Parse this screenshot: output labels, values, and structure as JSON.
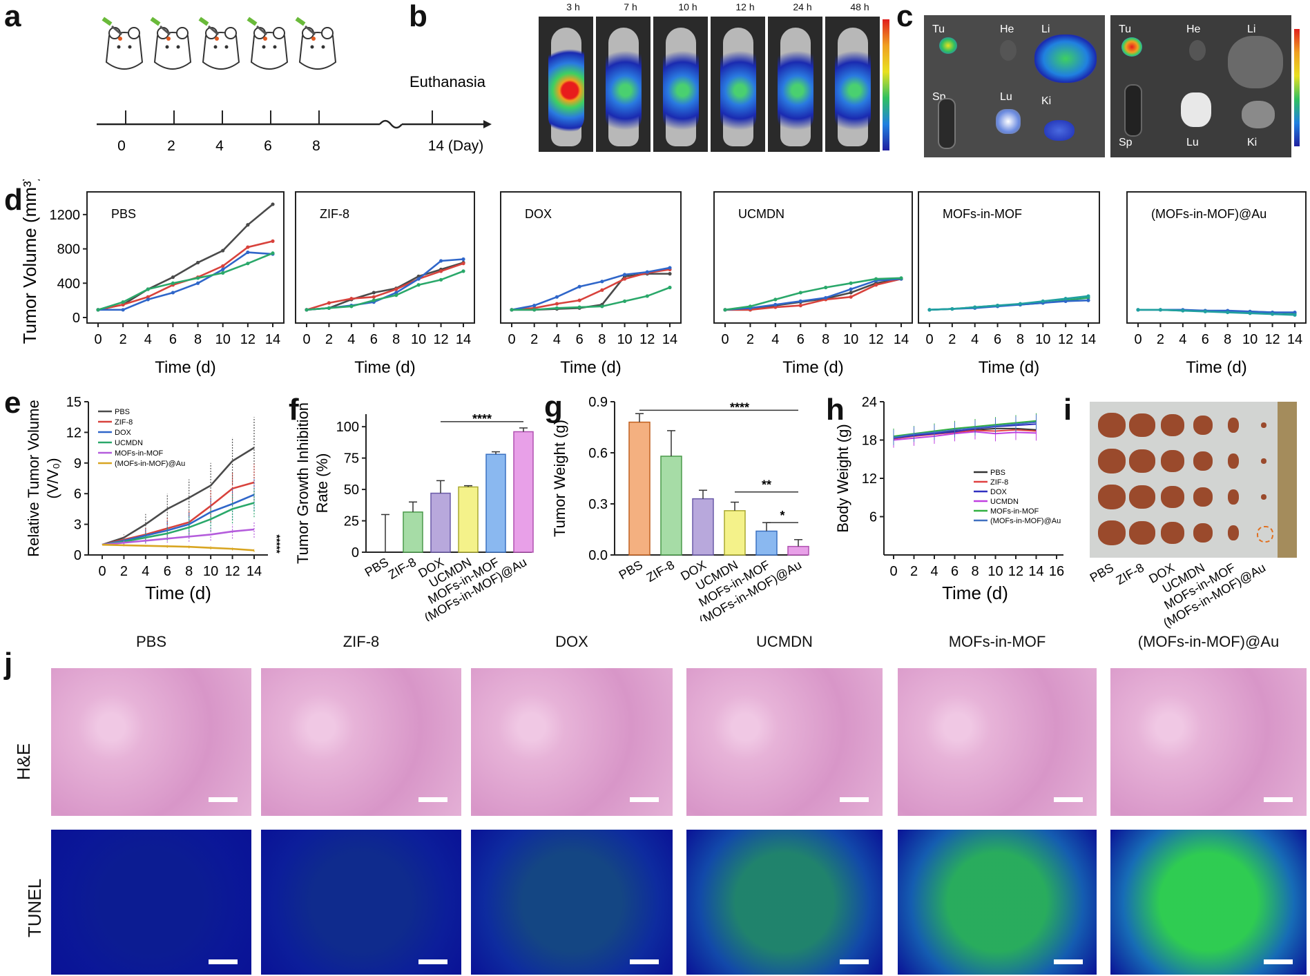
{
  "panels": {
    "a": "a",
    "b": "b",
    "c": "c",
    "d": "d",
    "e": "e",
    "f": "f",
    "g": "g",
    "h": "h",
    "i": "i",
    "j": "j"
  },
  "colors": {
    "PBS": "#4a4a4a",
    "ZIF-8": "#d8423c",
    "DOX": "#2f66c9",
    "UCMDN": "#2aa86a",
    "MOFs-in-MOF": "#b45cdc",
    "Au": "#d8a521",
    "he_bg": "#e7b3d8",
    "tunel_bg": "#0a1296",
    "tunel_green": "#33e04a"
  },
  "panel_a": {
    "days": [
      "0",
      "2",
      "4",
      "6",
      "8"
    ],
    "end_day": "14 (Day)",
    "event": "Euthanasia"
  },
  "panel_b": {
    "timepoints": [
      "3 h",
      "7 h",
      "10 h",
      "12 h",
      "24 h",
      "48 h"
    ]
  },
  "panel_c": {
    "left": [
      "Tu",
      "He",
      "Li",
      "Sp",
      "Lu",
      "Ki"
    ],
    "right": [
      "Tu",
      "He",
      "Li",
      "Sp",
      "Lu",
      "Ki"
    ]
  },
  "panel_d": {
    "ylabel": "Tumor Volume (mm³)",
    "xlabel": "Time (d)",
    "yticks": [
      "0",
      "400",
      "800",
      "1200"
    ],
    "xticks": [
      "0",
      "2",
      "4",
      "6",
      "8",
      "10",
      "12",
      "14"
    ]
  },
  "panel_e": {
    "ylabel_line1": "Relative Tumor Volume",
    "ylabel_line2": "(V/V₀)",
    "xlabel": "Time (d)",
    "yticks": [
      "0",
      "3",
      "6",
      "9",
      "12",
      "15"
    ],
    "xticks": [
      "0",
      "2",
      "4",
      "6",
      "8",
      "10",
      "12",
      "14"
    ],
    "legend": [
      "PBS",
      "ZIF-8",
      "DOX",
      "UCMDN",
      "MOFs-in-MOF",
      "(MOFs-in-MOF)@Au"
    ],
    "sig": "*****"
  },
  "panel_f": {
    "ylabel_line1": "Tumor Growth Inhibition",
    "ylabel_line2": "Rate (%)",
    "yticks": [
      "0",
      "25",
      "50",
      "75",
      "100"
    ],
    "categories": [
      "PBS",
      "ZIF-8",
      "DOX",
      "UCMDN",
      "MOFs-in-MOF",
      "(MOFs-in-MOF)@Au"
    ],
    "sig": "****"
  },
  "panel_g": {
    "ylabel": "Tumor Weight (g)",
    "yticks": [
      "0.0",
      "0.3",
      "0.6",
      "0.9"
    ],
    "categories": [
      "PBS",
      "ZIF-8",
      "DOX",
      "UCMDN",
      "MOFs-in-MOF",
      "(MOFs-in-MOF)@Au"
    ],
    "sig1": "****",
    "sig2": "**",
    "sig3": "*"
  },
  "panel_h": {
    "ylabel": "Body Weight (g)",
    "xlabel": "Time (d)",
    "yticks": [
      "6",
      "12",
      "18",
      "24"
    ],
    "xticks": [
      "0",
      "2",
      "4",
      "6",
      "8",
      "10",
      "12",
      "14",
      "16"
    ],
    "legend": [
      "PBS",
      "ZIF-8",
      "DOX",
      "UCMDN",
      "MOFs-in-MOF",
      "(MOFs-in-MOF)@Au"
    ]
  },
  "panel_i": {
    "categories": [
      "PBS",
      "ZIF-8",
      "DOX",
      "UCMDN",
      "MOFs-in-MOF",
      "(MOFs-in-MOF)@Au"
    ]
  },
  "panel_j": {
    "columns": [
      "PBS",
      "ZIF-8",
      "DOX",
      "UCMDN",
      "MOFs-in-MOF",
      "(MOFs-in-MOF)@Au"
    ],
    "rows": [
      "H&E",
      "TUNEL"
    ]
  },
  "chart_data": [
    {
      "type": "line",
      "panel": "d",
      "title": "",
      "xlabel": "Time (d)",
      "ylabel": "Tumor Volume (mm³)",
      "ylim": [
        0,
        1400
      ],
      "xlim": [
        0,
        14
      ],
      "subplots": [
        {
          "title": "PBS",
          "x": [
            0,
            2,
            4,
            6,
            8,
            10,
            12,
            14
          ],
          "series": [
            {
              "values": [
                90,
                150,
                330,
                470,
                640,
                780,
                1080,
                1320
              ]
            },
            {
              "values": [
                90,
                150,
                240,
                380,
                470,
                600,
                820,
                890
              ]
            },
            {
              "values": [
                90,
                90,
                210,
                290,
                400,
                560,
                760,
                740
              ]
            },
            {
              "values": [
                90,
                180,
                330,
                400,
                460,
                520,
                630,
                750
              ]
            }
          ]
        },
        {
          "title": "ZIF-8",
          "x": [
            0,
            2,
            4,
            6,
            8,
            10,
            12,
            14
          ],
          "series": [
            {
              "values": [
                90,
                110,
                210,
                290,
                340,
                480,
                560,
                640
              ]
            },
            {
              "values": [
                90,
                170,
                220,
                240,
                330,
                450,
                540,
                630
              ]
            },
            {
              "values": [
                90,
                110,
                140,
                180,
                290,
                450,
                660,
                680
              ]
            },
            {
              "values": [
                90,
                110,
                130,
                200,
                260,
                380,
                440,
                540
              ]
            }
          ]
        },
        {
          "title": "DOX",
          "x": [
            0,
            2,
            4,
            6,
            8,
            10,
            12,
            14
          ],
          "series": [
            {
              "values": [
                90,
                90,
                100,
                110,
                150,
                480,
                510,
                510
              ]
            },
            {
              "values": [
                90,
                110,
                160,
                200,
                320,
                450,
                520,
                560
              ]
            },
            {
              "values": [
                90,
                140,
                240,
                360,
                420,
                500,
                530,
                580
              ]
            },
            {
              "values": [
                90,
                90,
                110,
                120,
                130,
                190,
                250,
                350
              ]
            }
          ]
        },
        {
          "title": "UCMDN",
          "x": [
            0,
            2,
            4,
            6,
            8,
            10,
            12,
            14
          ],
          "series": [
            {
              "values": [
                90,
                90,
                140,
                180,
                220,
                290,
                400,
                450
              ]
            },
            {
              "values": [
                90,
                90,
                120,
                140,
                210,
                240,
                380,
                450
              ]
            },
            {
              "values": [
                90,
                110,
                150,
                190,
                230,
                330,
                430,
                450
              ]
            },
            {
              "values": [
                90,
                130,
                210,
                290,
                350,
                400,
                450,
                460
              ]
            }
          ]
        },
        {
          "title": "MOFs-in-MOF",
          "x": [
            0,
            2,
            4,
            6,
            8,
            10,
            12,
            14
          ],
          "series": [
            {
              "values": [
                90,
                100,
                120,
                140,
                150,
                170,
                200,
                230
              ]
            },
            {
              "values": [
                90,
                100,
                110,
                130,
                150,
                170,
                190,
                200
              ]
            },
            {
              "values": [
                90,
                100,
                120,
                140,
                160,
                190,
                220,
                250
              ]
            }
          ]
        },
        {
          "title": "(MOFs-in-MOF)@Au",
          "x": [
            0,
            2,
            4,
            6,
            8,
            10,
            12,
            14
          ],
          "series": [
            {
              "values": [
                90,
                90,
                80,
                80,
                70,
                70,
                60,
                50
              ]
            },
            {
              "values": [
                90,
                90,
                90,
                80,
                80,
                70,
                60,
                60
              ]
            },
            {
              "values": [
                90,
                90,
                80,
                70,
                60,
                50,
                40,
                30
              ]
            }
          ]
        }
      ]
    },
    {
      "type": "line",
      "panel": "e",
      "xlabel": "Time (d)",
      "ylabel": "Relative Tumor Volume (V/V₀)",
      "ylim": [
        0,
        15
      ],
      "x": [
        0,
        2,
        4,
        6,
        8,
        10,
        12,
        14
      ],
      "series": [
        {
          "name": "PBS",
          "values": [
            1.0,
            1.7,
            3.0,
            4.5,
            5.6,
            6.8,
            9.2,
            10.5
          ],
          "err": [
            0,
            0.3,
            1.0,
            1.5,
            1.8,
            2.2,
            2.3,
            3.0
          ]
        },
        {
          "name": "ZIF-8",
          "values": [
            1.0,
            1.5,
            2.0,
            2.6,
            3.2,
            4.8,
            6.5,
            7.1
          ],
          "err": [
            0,
            0.3,
            0.6,
            1.0,
            1.2,
            1.6,
            1.6,
            1.8
          ]
        },
        {
          "name": "DOX",
          "values": [
            1.0,
            1.4,
            1.9,
            2.4,
            3.0,
            4.2,
            5.0,
            5.9
          ],
          "err": [
            0,
            0.3,
            0.6,
            0.9,
            1.2,
            1.4,
            1.6,
            1.6
          ]
        },
        {
          "name": "UCMDN",
          "values": [
            1.0,
            1.3,
            1.7,
            2.1,
            2.7,
            3.5,
            4.5,
            5.1
          ],
          "err": [
            0,
            0.3,
            0.5,
            0.7,
            1.0,
            1.2,
            1.4,
            1.4
          ]
        },
        {
          "name": "MOFs-in-MOF",
          "values": [
            1.0,
            1.2,
            1.4,
            1.6,
            1.8,
            2.0,
            2.3,
            2.5
          ],
          "err": [
            0,
            0.2,
            0.3,
            0.4,
            0.5,
            0.6,
            0.7,
            0.8
          ]
        },
        {
          "name": "(MOFs-in-MOF)@Au",
          "values": [
            1.0,
            0.95,
            0.9,
            0.85,
            0.8,
            0.7,
            0.6,
            0.45
          ],
          "err": [
            0,
            0.1,
            0.1,
            0.15,
            0.15,
            0.15,
            0.15,
            0.15
          ]
        }
      ]
    },
    {
      "type": "bar",
      "panel": "f",
      "ylabel": "Tumor Growth Inhibition Rate (%)",
      "ylim": [
        0,
        110
      ],
      "categories": [
        "PBS",
        "ZIF-8",
        "DOX",
        "UCMDN",
        "MOFs-in-MOF",
        "(MOFs-in-MOF)@Au"
      ],
      "values": [
        0,
        32,
        47,
        52,
        78,
        96
      ],
      "err": [
        30,
        8,
        10,
        1,
        2,
        3
      ]
    },
    {
      "type": "bar",
      "panel": "g",
      "ylabel": "Tumor Weight (g)",
      "ylim": [
        0,
        0.9
      ],
      "categories": [
        "PBS",
        "ZIF-8",
        "DOX",
        "UCMDN",
        "MOFs-in-MOF",
        "(MOFs-in-MOF)@Au"
      ],
      "values": [
        0.78,
        0.58,
        0.33,
        0.26,
        0.14,
        0.05
      ],
      "err": [
        0.05,
        0.15,
        0.05,
        0.05,
        0.05,
        0.04
      ]
    },
    {
      "type": "line",
      "panel": "h",
      "xlabel": "Time (d)",
      "ylabel": "Body Weight (g)",
      "ylim": [
        0,
        24
      ],
      "xlim": [
        0,
        16
      ],
      "x": [
        0,
        2,
        4,
        6,
        8,
        10,
        12,
        14
      ],
      "series": [
        {
          "name": "PBS",
          "values": [
            18.5,
            18.8,
            19.1,
            19.4,
            19.6,
            19.8,
            19.8,
            19.6
          ]
        },
        {
          "name": "ZIF-8",
          "values": [
            18.2,
            18.6,
            18.9,
            19.2,
            19.5,
            19.4,
            19.6,
            19.4
          ]
        },
        {
          "name": "DOX",
          "values": [
            18.3,
            18.7,
            19.0,
            19.3,
            19.8,
            20.1,
            20.3,
            20.5
          ]
        },
        {
          "name": "UCMDN",
          "values": [
            18.0,
            18.3,
            18.6,
            19.0,
            19.3,
            19.0,
            19.2,
            19.1
          ]
        },
        {
          "name": "MOFs-in-MOF",
          "values": [
            18.6,
            19.0,
            19.4,
            19.8,
            20.1,
            20.4,
            20.7,
            21.0
          ]
        },
        {
          "name": "(MOFs-in-MOF)@Au",
          "values": [
            18.4,
            18.9,
            19.2,
            19.6,
            19.9,
            20.2,
            20.5,
            20.8
          ]
        }
      ]
    }
  ]
}
